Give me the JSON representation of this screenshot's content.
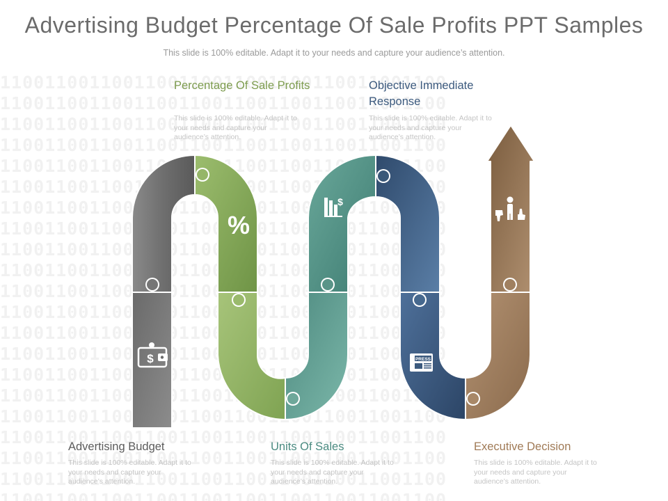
{
  "title": "Advertising Budget Percentage Of Sale Profits PPT Samples",
  "subtitle": "This slide is 100% editable. Adapt it to your needs and capture your audience’s attention.",
  "background_pattern": "1100110011001100110011001100110011001100",
  "steps": [
    {
      "label": "Advertising Budget",
      "description": "This slide is 100% editable. Adapt it to your needs and capture your audience’s attention.",
      "color": "#555555",
      "icon": "wallet-dollar-icon"
    },
    {
      "label": "Percentage Of Sale Profits",
      "description": "This slide is 100% editable. Adapt it to your needs and capture your audience’s attention.",
      "color": "#7a9a4e",
      "icon": "percent-icon"
    },
    {
      "label": "Units Of Sales",
      "description": "This slide is 100% editable. Adapt it to your needs and capture your audience’s attention.",
      "color": "#4a8a80",
      "icon": "bar-chart-dollar-icon"
    },
    {
      "label": "Objective Immediate Response",
      "description": "This slide is 100% editable. Adapt it to your needs and capture your audience’s attention.",
      "color": "#3c5a7e",
      "icon": "press-newspaper-icon"
    },
    {
      "label": "Executive Decision",
      "description": "This slide is 100% editable. Adapt it to your needs and capture your audience’s attention.",
      "color": "#8c6e4e",
      "icon": "thumbs-decision-icon"
    }
  ],
  "icon_text": {
    "percent": "%",
    "dollar": "$",
    "press": "PRESS"
  }
}
